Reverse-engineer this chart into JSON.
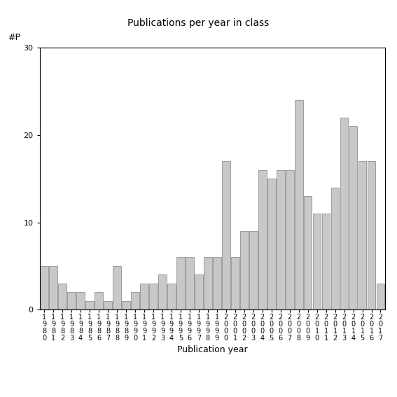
{
  "title": "Publications per year in class",
  "xlabel": "Publication year",
  "ylabel": "#P",
  "bar_color": "#c8c8c8",
  "bar_edge_color": "#808080",
  "background_color": "#ffffff",
  "ylim": [
    0,
    30
  ],
  "yticks": [
    0,
    10,
    20,
    30
  ],
  "years": [
    "1980",
    "1981",
    "1982",
    "1983",
    "1984",
    "1985",
    "1986",
    "1987",
    "1988",
    "1989",
    "1990",
    "1991",
    "1992",
    "1993",
    "1994",
    "1995",
    "1996",
    "1997",
    "1998",
    "1999",
    "2000",
    "2001",
    "2002",
    "2003",
    "2004",
    "2005",
    "2006",
    "2007",
    "2008",
    "2009",
    "2010",
    "2011",
    "2012",
    "2013",
    "2014",
    "2015",
    "2016",
    "2017"
  ],
  "values": [
    5,
    5,
    3,
    2,
    2,
    1,
    2,
    1,
    5,
    1,
    2,
    3,
    3,
    4,
    3,
    6,
    6,
    4,
    6,
    6,
    17,
    6,
    9,
    9,
    16,
    15,
    16,
    16,
    24,
    13,
    11,
    11,
    14,
    22,
    21,
    17,
    17,
    3
  ],
  "title_fontsize": 10,
  "axis_label_fontsize": 9,
  "tick_fontsize": 7,
  "ylabel_fontsize": 9
}
